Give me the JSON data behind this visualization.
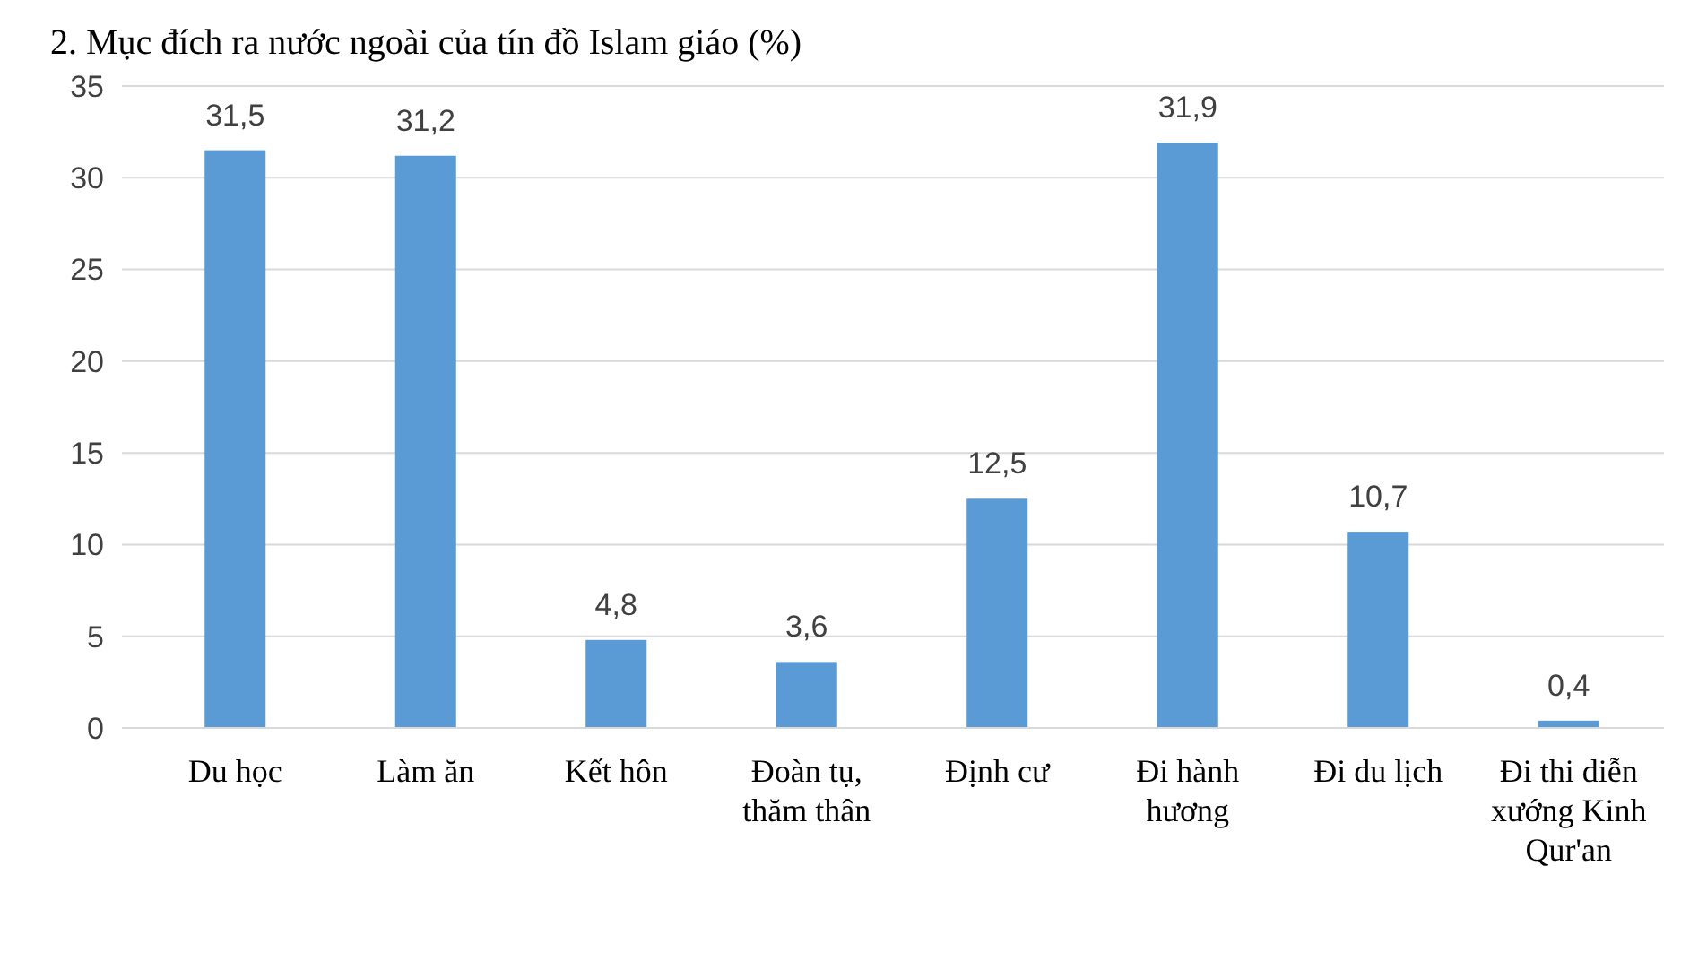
{
  "chart_data": {
    "type": "bar",
    "title": "2. Mục đích ra nước ngoài của tín đồ Islam giáo (%)",
    "categories": [
      "Du học",
      "Làm ăn",
      "Kết hôn",
      "Đoàn tụ, thăm thân",
      "Định cư",
      "Đi hành hương",
      "Đi du lịch",
      "Đi thi diễn xướng Kinh Qur'an"
    ],
    "values": [
      31.5,
      31.2,
      4.8,
      3.6,
      12.5,
      31.9,
      10.7,
      0.4
    ],
    "color": "#5b9bd5",
    "ylim": [
      0,
      35
    ],
    "yticks": [
      0,
      5,
      10,
      15,
      20,
      25,
      30,
      35
    ],
    "grid": "y",
    "value_labels": [
      "31,5",
      "31,2",
      "4,8",
      "3,6",
      "12,5",
      "31,9",
      "10,7",
      "0,4"
    ]
  }
}
